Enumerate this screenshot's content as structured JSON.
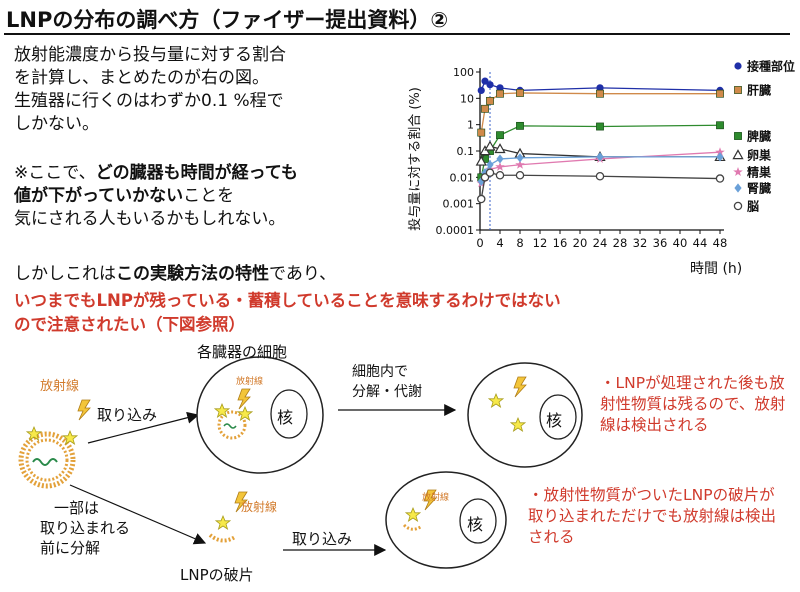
{
  "title": "LNPの分布の調べ方（ファイザー提出資料）②",
  "intro": {
    "line1": "放射能濃度から投与量に対する割合",
    "line2": "を計算し、まとめたのが右の図。",
    "line3": "生殖器に行くのはわずか0.1 %程で",
    "line4": "しかない。"
  },
  "remark": {
    "l1_pre": "※ここで、",
    "l1_bold": "どの臓器も時間が経っても",
    "l2_bold": "値が下がっていかない",
    "l2_post": "ことを",
    "l3": "気にされる人もいるかもしれない。"
  },
  "statement": {
    "pre": "しかしこれは",
    "bold": "この実験方法の特性",
    "post": "であり、",
    "red1": "いつまでもLNPが残っている・蓄積していることを意味するわけではない",
    "red2": "ので注意されたい（下図参照）"
  },
  "diagram": {
    "organ_cells_label": "各臓器の細胞",
    "radiation_label": "放射線",
    "uptake_label": "取り込み",
    "uptake_label2": "取り込み",
    "nucleus": "核",
    "decomp_line1": "細胞内で",
    "decomp_line2": "分解・代謝",
    "partial_1": "一部は",
    "partial_2": "取り込まれる",
    "partial_3": "前に分解",
    "fragment_label": "LNPの破片",
    "note1": "・LNPが処理された後も放射性物質は残るので、放射線は検出される",
    "note2": "・放射性物質がついたLNPの破片が取り込まれただけでも放射線は検出される"
  },
  "chart_data": {
    "type": "line",
    "xlabel": "時間 (h)",
    "ylabel": "投与量に対する割合 (%)",
    "yscale": "log",
    "ylim": [
      0.0001,
      100
    ],
    "xlim": [
      0,
      48
    ],
    "xticks": [
      "0",
      "4",
      "8",
      "12",
      "16",
      "20",
      "24",
      "28",
      "32",
      "36",
      "40",
      "44",
      "48"
    ],
    "yticks": [
      "0.0001",
      "0.001",
      "0.01",
      "0.1",
      "1",
      "10",
      "100"
    ],
    "series": [
      {
        "name": "接種部位",
        "color": "#1f2fa8",
        "marker": "circle-filled",
        "x": [
          0.25,
          1,
          2,
          4,
          8,
          24,
          48
        ],
        "y": [
          20,
          45,
          33,
          25,
          20,
          25,
          20
        ]
      },
      {
        "name": "肝臓",
        "color": "#d08a4a",
        "marker": "square-filled",
        "x": [
          0.25,
          1,
          2,
          4,
          8,
          24,
          48
        ],
        "y": [
          0.5,
          4,
          8,
          15,
          16,
          15,
          15
        ]
      },
      {
        "name": "脾臓",
        "color": "#2e8b2e",
        "marker": "square-filled",
        "x": [
          0.25,
          1,
          2,
          4,
          8,
          24,
          48
        ],
        "y": [
          0.01,
          0.05,
          0.1,
          0.4,
          0.9,
          0.85,
          0.95
        ]
      },
      {
        "name": "卵巣",
        "color": "#333333",
        "marker": "triangle",
        "x": [
          0.25,
          1,
          2,
          4,
          8,
          24,
          48
        ],
        "y": [
          0.04,
          0.1,
          0.15,
          0.12,
          0.08,
          0.06,
          0.06
        ]
      },
      {
        "name": "精巣",
        "color": "#e07ab0",
        "marker": "star",
        "x": [
          0.25,
          1,
          2,
          4,
          8,
          24,
          48
        ],
        "y": [
          0.006,
          0.01,
          0.02,
          0.025,
          0.03,
          0.05,
          0.09
        ]
      },
      {
        "name": "腎臓",
        "color": "#6aa0d8",
        "marker": "diamond",
        "x": [
          0.25,
          1,
          2,
          4,
          8,
          24,
          48
        ],
        "y": [
          0.007,
          0.015,
          0.03,
          0.05,
          0.055,
          0.06,
          0.06
        ]
      },
      {
        "name": "脳",
        "color": "#444444",
        "marker": "circle-open",
        "x": [
          0.25,
          1,
          2,
          4,
          8,
          24,
          48
        ],
        "y": [
          0.0015,
          0.01,
          0.015,
          0.012,
          0.012,
          0.011,
          0.009
        ]
      }
    ]
  }
}
